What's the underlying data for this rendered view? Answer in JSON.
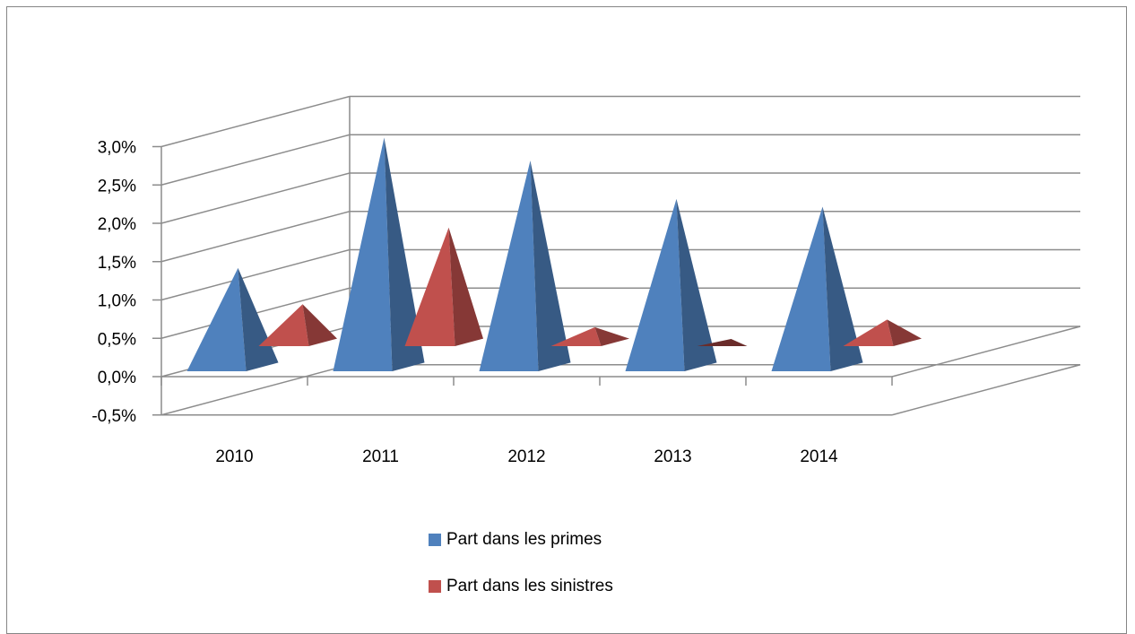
{
  "chart_data": {
    "type": "bar",
    "style": "3d-pyramid",
    "categories": [
      "2010",
      "2011",
      "2012",
      "2013",
      "2014"
    ],
    "series": [
      {
        "name": "Part dans les primes",
        "values": [
          1.3,
          3.0,
          2.7,
          2.2,
          2.1
        ],
        "color": "#4F81BD"
      },
      {
        "name": "Part dans les sinistres",
        "values": [
          0.5,
          1.5,
          0.2,
          0.0,
          0.3
        ],
        "color": "#C0504D"
      }
    ],
    "ylim": [
      -0.5,
      3.0
    ],
    "y_ticks": [
      "3,0%",
      "2,5%",
      "2,0%",
      "1,5%",
      "1,0%",
      "0,5%",
      "0,0%",
      "-0,5%"
    ],
    "grid": true,
    "legend": "bottom",
    "title": "",
    "xlabel": "",
    "ylabel": ""
  }
}
